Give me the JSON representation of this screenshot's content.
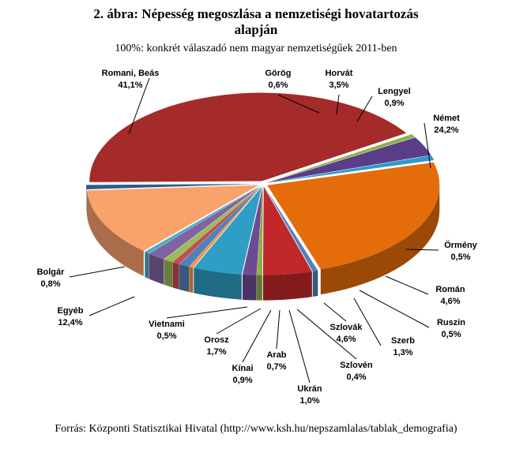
{
  "title_line1": "2. ábra: Népesség megoszlása a nemzetiségi hovatartozás",
  "title_line2": "alapján",
  "subtitle": "100%: konkrét válaszadó nem magyar nemzetiségűek 2011-ben",
  "source": "Forrás: Központi Statisztikai Hivatal (http://www.ksh.hu/nepszamlalas/tablak_demografia)",
  "chart_data": {
    "type": "pie",
    "style": "3d-exploded",
    "slices": [
      {
        "name": "Német",
        "label": "Német",
        "pct": "24,2%",
        "value": 24.2,
        "color": "#E46C0A"
      },
      {
        "name": "Örmény",
        "label": "Örmény",
        "pct": "0,5%",
        "value": 0.5,
        "color": "#4F81BD"
      },
      {
        "name": "Román",
        "label": "Román",
        "pct": "4,6%",
        "value": 4.6,
        "color": "#C0282B"
      },
      {
        "name": "Ruszin",
        "label": "Ruszin",
        "pct": "0,5%",
        "value": 0.5,
        "color": "#8CB043"
      },
      {
        "name": "Szerb",
        "label": "Szerb",
        "pct": "1,3%",
        "value": 1.3,
        "color": "#6F4A94"
      },
      {
        "name": "Szlovák",
        "label": "Szlovák",
        "pct": "4,6%",
        "value": 4.6,
        "color": "#2E9EC4"
      },
      {
        "name": "Szlovén",
        "label": "Szlovén",
        "pct": "0,4%",
        "value": 0.4,
        "color": "#F79646"
      },
      {
        "name": "Ukrán",
        "label": "Ukrán",
        "pct": "1,0%",
        "value": 1.0,
        "color": "#4F81BD"
      },
      {
        "name": "Arab",
        "label": "Arab",
        "pct": "0,7%",
        "value": 0.7,
        "color": "#C0504D"
      },
      {
        "name": "Kínai",
        "label": "Kínai",
        "pct": "0,9%",
        "value": 0.9,
        "color": "#9BBB59"
      },
      {
        "name": "Orosz",
        "label": "Orosz",
        "pct": "1,7%",
        "value": 1.7,
        "color": "#8064A2"
      },
      {
        "name": "Vietnami",
        "label": "Vietnami",
        "pct": "0,5%",
        "value": 0.5,
        "color": "#4BACC6"
      },
      {
        "name": "Egyéb",
        "label": "Egyéb",
        "pct": "12,4%",
        "value": 12.4,
        "color": "#F9A26C"
      },
      {
        "name": "Bolgár",
        "label": "Bolgár",
        "pct": "0,8%",
        "value": 0.8,
        "color": "#2E5C8A"
      },
      {
        "name": "Romani, Beás",
        "label": "Romani, Beás",
        "pct": "41,1%",
        "value": 41.1,
        "color": "#A52A2A"
      },
      {
        "name": "Görög",
        "label": "Görög",
        "pct": "0,6%",
        "value": 0.6,
        "color": "#8CB043"
      },
      {
        "name": "Horvát",
        "label": "Horvát",
        "pct": "3,5%",
        "value": 3.5,
        "color": "#5B3C88"
      },
      {
        "name": "Lengyel",
        "label": "Lengyel",
        "pct": "0,9%",
        "value": 0.9,
        "color": "#2C9BC7"
      }
    ]
  }
}
